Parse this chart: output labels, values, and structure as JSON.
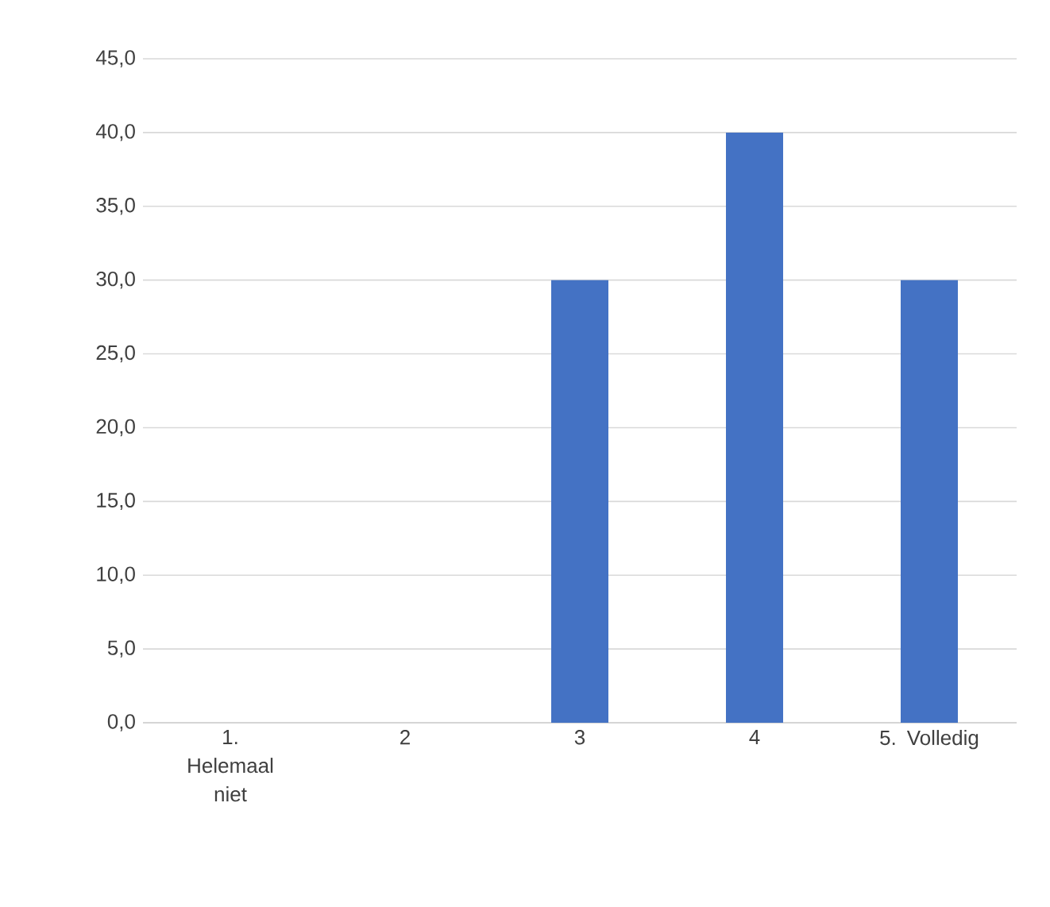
{
  "chart_data": {
    "type": "bar",
    "categories": [
      "1. Helemaal niet",
      "2",
      "3",
      "4",
      "5. Volledig"
    ],
    "values": [
      0,
      0,
      30,
      40,
      30
    ],
    "color": "#4472c4",
    "ylim": [
      0,
      45
    ],
    "yticks": [
      {
        "value": 0,
        "label": "0,0"
      },
      {
        "value": 5,
        "label": "5,0"
      },
      {
        "value": 10,
        "label": "10,0"
      },
      {
        "value": 15,
        "label": "15,0"
      },
      {
        "value": 20,
        "label": "20,0"
      },
      {
        "value": 25,
        "label": "25,0"
      },
      {
        "value": 30,
        "label": "30,0"
      },
      {
        "value": 35,
        "label": "35,0"
      },
      {
        "value": 40,
        "label": "40,0"
      },
      {
        "value": 45,
        "label": "45,0"
      }
    ],
    "grid": "y"
  }
}
